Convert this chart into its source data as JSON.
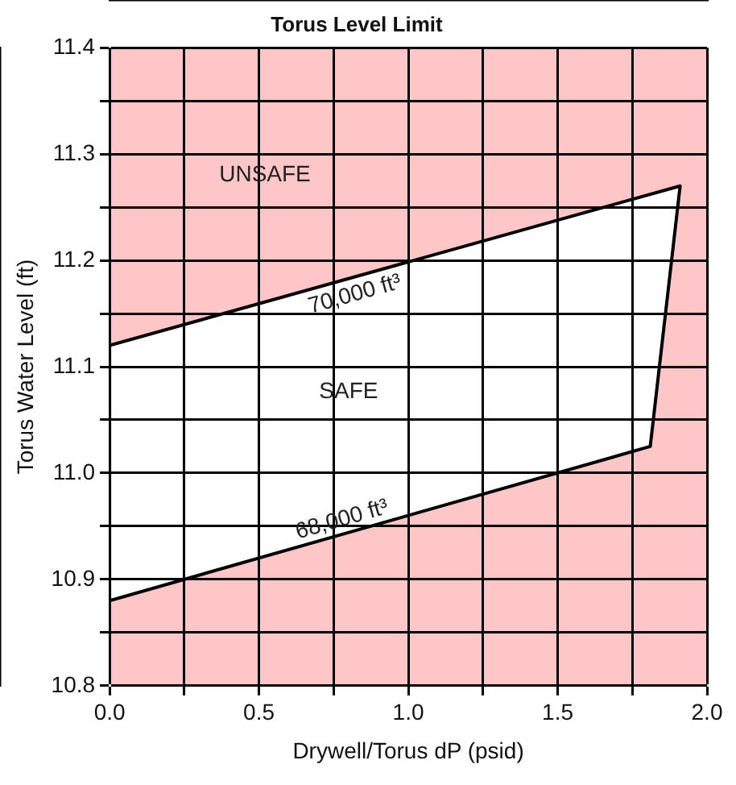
{
  "chart_data": {
    "type": "area",
    "title": "Torus Level Limit",
    "xlabel": "Drywell/Torus dP (psid)",
    "ylabel": "Torus Water Level (ft)",
    "series": [
      {
        "color": "#000000",
        "x": [
          0,
          1.91,
          1.81,
          0,
          0
        ],
        "values": [
          11.12,
          11.27,
          11.025,
          10.88,
          11.12
        ]
      }
    ],
    "bands": [
      {
        "axis": "y",
        "from": 10.8,
        "to": 11.4,
        "color": "#ffc6c8"
      }
    ],
    "annotations": [
      "UNSAFE",
      "SAFE",
      "70,000 ft³",
      "68,000 ft³"
    ],
    "xlim": [
      0,
      2
    ],
    "ylim": [
      10.8,
      11.4
    ],
    "xticks": [
      {
        "value": 0,
        "label": "0.0"
      },
      {
        "value": 0.25,
        "label": null
      },
      {
        "value": 0.5,
        "label": "0.5"
      },
      {
        "value": 0.75,
        "label": null
      },
      {
        "value": 1,
        "label": "1.0"
      },
      {
        "value": 1.25,
        "label": null
      },
      {
        "value": 1.5,
        "label": "1.5"
      },
      {
        "value": 1.75,
        "label": null
      },
      {
        "value": 2,
        "label": "2.0"
      }
    ],
    "yticks": [
      {
        "value": 10.8,
        "label": "10.8"
      },
      {
        "value": 10.85,
        "label": null
      },
      {
        "value": 10.9,
        "label": "10.9"
      },
      {
        "value": 10.95,
        "label": null
      },
      {
        "value": 11,
        "label": "11.0"
      },
      {
        "value": 11.05,
        "label": null
      },
      {
        "value": 11.1,
        "label": "11.1"
      },
      {
        "value": 11.15,
        "label": null
      },
      {
        "value": 11.2,
        "label": "11.2"
      },
      {
        "value": 11.25,
        "label": null
      },
      {
        "value": 11.3,
        "label": "11.3"
      },
      {
        "value": 11.35,
        "label": null
      },
      {
        "value": 11.4,
        "label": "11.4"
      }
    ],
    "grid": true
  }
}
